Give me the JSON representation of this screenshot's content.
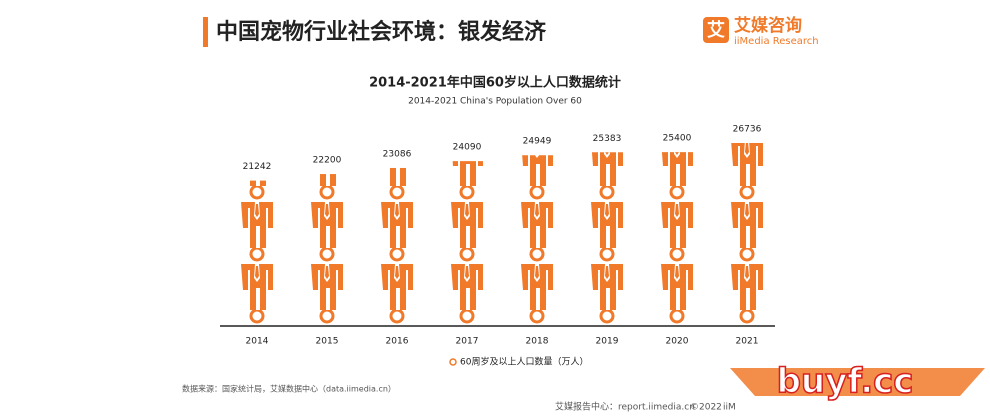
{
  "header": {
    "title": "中国宠物行业社会环境：银发经济",
    "logo_cn": "艾媒咨询",
    "logo_en": "iiMedia Research",
    "logo_icon": "艾"
  },
  "chart_data": {
    "type": "pictograph",
    "title": "2014-2021年中国60岁以上人口数据统计",
    "subtitle": "2014-2021 China's Population Over 60",
    "categories": [
      "2014",
      "2015",
      "2016",
      "2017",
      "2018",
      "2019",
      "2020",
      "2021"
    ],
    "series": [
      {
        "name": "60周岁及以上人口数量（万人）",
        "color": "#f07a2a",
        "values": [
          21242,
          22200,
          23086,
          24090,
          24949,
          25383,
          25400,
          26736
        ]
      }
    ]
  },
  "source": "数据来源：国家统计局，艾媒数据中心（data.iimedia.cn）",
  "footer": {
    "center": "艾媒报告中心：report.iimedia.cn",
    "copyright": "©2022",
    "brand": "iiM"
  },
  "watermark": "buyf.cc"
}
